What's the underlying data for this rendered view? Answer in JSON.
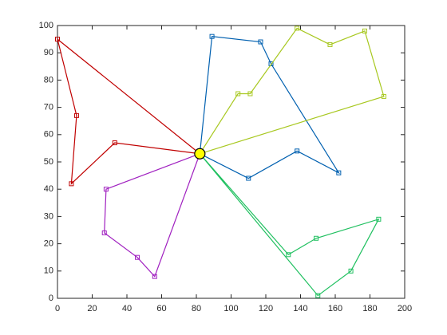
{
  "chart_data": {
    "type": "line",
    "xlim": [
      0,
      200
    ],
    "ylim": [
      0,
      100
    ],
    "xticks": [
      0,
      20,
      40,
      60,
      80,
      100,
      120,
      140,
      160,
      180,
      200
    ],
    "yticks": [
      0,
      10,
      20,
      30,
      40,
      50,
      60,
      70,
      80,
      90,
      100
    ],
    "grid": false,
    "depot": {
      "x": 82,
      "y": 53,
      "color": "#ffff00"
    },
    "series": [
      {
        "color": "#c00000",
        "x": [
          82,
          33,
          8,
          11,
          0,
          82
        ],
        "y": [
          53,
          57,
          42,
          67,
          95,
          53
        ]
      },
      {
        "color": "#0060b0",
        "x": [
          82,
          89,
          117,
          123,
          162,
          138,
          110,
          82
        ],
        "y": [
          53,
          96,
          94,
          86,
          46,
          54,
          44,
          53
        ]
      },
      {
        "color": "#a8c820",
        "x": [
          82,
          104,
          111,
          138,
          157,
          177,
          188,
          82
        ],
        "y": [
          53,
          75,
          75,
          99,
          93,
          98,
          74,
          53
        ]
      },
      {
        "color": "#20c060",
        "x": [
          82,
          133,
          149,
          185,
          169,
          150,
          82
        ],
        "y": [
          53,
          16,
          22,
          29,
          10,
          1,
          53
        ]
      },
      {
        "color": "#a020c0",
        "x": [
          82,
          56,
          46,
          27,
          28,
          82
        ],
        "y": [
          53,
          8,
          15,
          24,
          40,
          53
        ]
      }
    ]
  }
}
